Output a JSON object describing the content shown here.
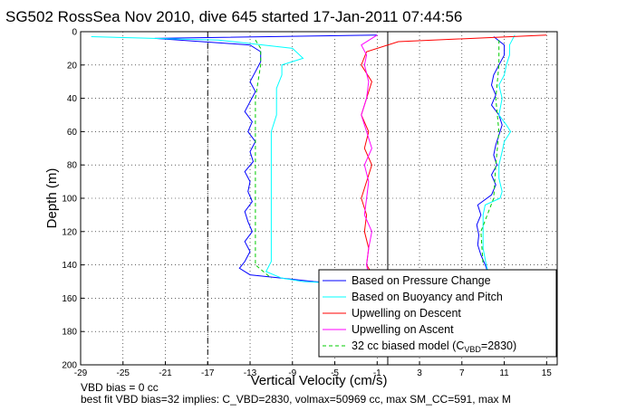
{
  "chart_data": {
    "type": "line",
    "title": "SG502 RossSea Nov 2010, dive 645 started 17-Jan-2011 07:44:56",
    "xlabel": "Vertical Velocity (cm/s)",
    "ylabel": "Depth (m)",
    "xlim": [
      -29,
      16
    ],
    "ylim": [
      0,
      200
    ],
    "y_reversed": true,
    "xticks": [
      "-29",
      "-25",
      "-21",
      "-17",
      "-13",
      "-9",
      "-5",
      "-1",
      "3",
      "7",
      "11",
      "15"
    ],
    "yticks": [
      "0",
      "20",
      "40",
      "60",
      "80",
      "100",
      "120",
      "140",
      "160",
      "180",
      "200"
    ],
    "grid": true,
    "legend_position": "lower-right",
    "vertical_lines": [
      {
        "x": -17,
        "style": "dashdot"
      },
      {
        "x": 0,
        "style": "solid"
      }
    ],
    "series": [
      {
        "name": "Based on Pressure Change",
        "color": "#0000ff",
        "segments": [
          {
            "depth": [
              2,
              4,
              8,
              12,
              18,
              24,
              30,
              36,
              42,
              48,
              54,
              60,
              66,
              72,
              78,
              84,
              90,
              96,
              102,
              108,
              114,
              120,
              126,
              132,
              138,
              142,
              146,
              148,
              150,
              151
            ],
            "x": [
              -1,
              -22,
              -13,
              -12,
              -12,
              -12.5,
              -13,
              -12.5,
              -13,
              -13.5,
              -12.8,
              -13.2,
              -12.5,
              -13,
              -12.7,
              -13.5,
              -13,
              -13.2,
              -12.8,
              -13.5,
              -13.2,
              -12.8,
              -13.5,
              -13,
              -13.5,
              -14,
              -13,
              -10,
              -7,
              -5
            ]
          },
          {
            "depth": [
              3,
              8,
              14,
              20,
              26,
              32,
              38,
              44,
              50,
              56,
              62,
              68,
              74,
              80,
              86,
              92,
              98,
              104,
              110,
              116,
              122,
              128,
              134,
              140,
              145
            ],
            "x": [
              10,
              11,
              11,
              10.5,
              10,
              9.8,
              10.2,
              9.8,
              10.5,
              10.8,
              10.5,
              10.2,
              10,
              10.3,
              9.8,
              10.2,
              9.8,
              8.5,
              8.8,
              8.4,
              8.6,
              8.5,
              8.8,
              9.2,
              9.5
            ]
          }
        ]
      },
      {
        "name": "Based on Buoyancy and Pitch",
        "color": "#00ffff",
        "segments": [
          {
            "depth": [
              3,
              5,
              10,
              16,
              20,
              26,
              34,
              44,
              50,
              60,
              70,
              80,
              90,
              100,
              110,
              120,
              130,
              138,
              144,
              148,
              150,
              151
            ],
            "x": [
              -28,
              -16,
              -9,
              -8,
              -10,
              -10,
              -10.5,
              -10.5,
              -10.5,
              -11,
              -11,
              -11,
              -11,
              -11,
              -11,
              -11,
              -11,
              -11,
              -11.5,
              -10,
              -8,
              -5
            ]
          },
          {
            "depth": [
              2,
              8,
              14,
              20,
              26,
              32,
              40,
              50,
              56,
              60,
              66,
              72,
              80,
              88,
              96,
              100,
              104,
              110,
              120,
              130,
              140,
              145
            ],
            "x": [
              12,
              11.5,
              11.5,
              11.2,
              11,
              10.5,
              10.8,
              10.5,
              11.2,
              11.6,
              11,
              10.8,
              10.5,
              10.5,
              10.8,
              10.6,
              9.2,
              9,
              9,
              9,
              9.3,
              9.5
            ]
          }
        ]
      },
      {
        "name": "Upwelling on Descent",
        "color": "#ff0000",
        "segments": [
          {
            "depth": [
              2,
              6,
              12,
              20,
              30,
              40,
              50,
              60,
              70,
              80,
              90,
              100,
              110,
              120,
              130,
              140,
              145
            ],
            "x": [
              15,
              1,
              -2,
              -2.5,
              -1.5,
              -2,
              -2.5,
              -1.8,
              -2.2,
              -1.5,
              -2,
              -2.5,
              -2,
              -2.2,
              -1.8,
              -2,
              -1.5
            ]
          }
        ]
      },
      {
        "name": "Upwelling on Ascent",
        "color": "#ff00ff",
        "segments": [
          {
            "depth": [
              2,
              8,
              14,
              20,
              30,
              40,
              50,
              60,
              70,
              80,
              90,
              100,
              110,
              120,
              130,
              140,
              146
            ],
            "x": [
              -1,
              -2.5,
              -2,
              -2.2,
              -1.8,
              -2,
              -2.5,
              -2,
              -1.5,
              -2.2,
              -1.8,
              -2,
              -2.2,
              -1.5,
              -1.8,
              -2,
              -1.8
            ]
          }
        ]
      },
      {
        "name": "32 cc biased model (C_VBD=2830)",
        "color": "#00cc00",
        "style": "dashed",
        "segments": [
          {
            "depth": [
              5,
              10,
              20,
              40,
              60,
              80,
              100,
              120,
              140,
              148
            ],
            "x": [
              -12.5,
              -12,
              -12,
              -12.5,
              -12.5,
              -12.5,
              -12.5,
              -12.5,
              -12.5,
              -11
            ]
          },
          {
            "depth": [
              5,
              20,
              40,
              60,
              80,
              100,
              120,
              140
            ],
            "x": [
              10.5,
              10.5,
              10.2,
              10.5,
              10.2,
              10,
              8.8,
              9
            ]
          }
        ]
      }
    ]
  },
  "footer": {
    "line1": "VBD bias = 0 cc",
    "line2": "best fit VBD bias=32 implies: C_VBD=2830, volmax=50969 cc, max SM_CC=591, max M"
  },
  "legend": {
    "items": [
      {
        "label": "Based on Pressure Change",
        "color": "#0000ff"
      },
      {
        "label": "Based on Buoyancy and Pitch",
        "color": "#00ffff"
      },
      {
        "label": "Upwelling on Descent",
        "color": "#ff0000"
      },
      {
        "label": "Upwelling on Ascent",
        "color": "#ff00ff"
      },
      {
        "label": "32 cc biased model (C",
        "label_sub": "VBD",
        "label_end": "=2830)",
        "color": "#00cc00"
      }
    ]
  }
}
